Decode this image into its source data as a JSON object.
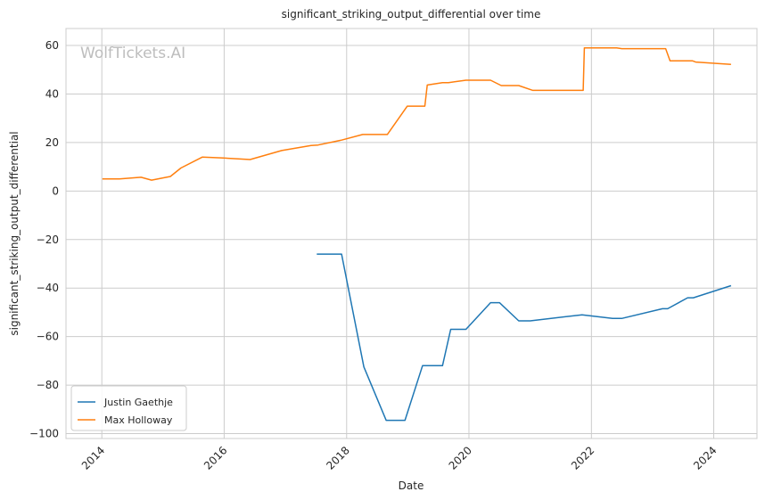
{
  "chart_data": {
    "type": "line",
    "title": "significant_striking_output_differential over time",
    "xlabel": "Date",
    "ylabel": "significant_striking_output_differential",
    "watermark": "WolfTickets.AI",
    "xlim": [
      "2013-06-01",
      "2024-09-15"
    ],
    "ylim": [
      -102,
      67
    ],
    "x_ticks": [
      "2014",
      "2016",
      "2018",
      "2020",
      "2022",
      "2024"
    ],
    "y_ticks": [
      60,
      40,
      20,
      0,
      -20,
      -40,
      -60,
      -80,
      -100
    ],
    "grid": true,
    "legend_position": "lower-left",
    "series": [
      {
        "name": "Justin Gaethje",
        "color": "#1f77b4",
        "points": [
          [
            "2017-07-07",
            -26
          ],
          [
            "2017-12-02",
            -26
          ],
          [
            "2018-04-14",
            -72.5
          ],
          [
            "2018-08-25",
            -94.5
          ],
          [
            "2018-12-15",
            -94.5
          ],
          [
            "2019-03-30",
            -72
          ],
          [
            "2019-07-27",
            -72
          ],
          [
            "2019-09-14",
            -57
          ],
          [
            "2019-12-14",
            -57
          ],
          [
            "2020-05-09",
            -46
          ],
          [
            "2020-07-01",
            -46
          ],
          [
            "2020-10-24",
            -53.5
          ],
          [
            "2021-01-01",
            -53.5
          ],
          [
            "2021-11-06",
            -51
          ],
          [
            "2022-05-07",
            -52.5
          ],
          [
            "2022-07-01",
            -52.5
          ],
          [
            "2023-03-01",
            -48.5
          ],
          [
            "2023-04-01",
            -48.5
          ],
          [
            "2023-07-29",
            -44
          ],
          [
            "2023-09-01",
            -44
          ],
          [
            "2024-04-13",
            -39
          ]
        ]
      },
      {
        "name": "Max Holloway",
        "color": "#ff7f0e",
        "points": [
          [
            "2014-01-04",
            5
          ],
          [
            "2014-04-16",
            5
          ],
          [
            "2014-08-23",
            5.7
          ],
          [
            "2014-10-25",
            4.5
          ],
          [
            "2015-02-14",
            6
          ],
          [
            "2015-04-18",
            9.5
          ],
          [
            "2015-08-23",
            14
          ],
          [
            "2015-12-12",
            13.7
          ],
          [
            "2016-06-04",
            13
          ],
          [
            "2016-12-10",
            16.7
          ],
          [
            "2017-06-03",
            18.8
          ],
          [
            "2017-07-15",
            19
          ],
          [
            "2017-12-02",
            21
          ],
          [
            "2018-04-07",
            23.3
          ],
          [
            "2018-09-01",
            23.3
          ],
          [
            "2018-12-29",
            35
          ],
          [
            "2019-04-13",
            35
          ],
          [
            "2019-04-27",
            43.7
          ],
          [
            "2019-07-27",
            44.7
          ],
          [
            "2019-09-01",
            44.7
          ],
          [
            "2019-12-14",
            45.7
          ],
          [
            "2020-05-09",
            45.7
          ],
          [
            "2020-07-12",
            43.5
          ],
          [
            "2020-10-24",
            43.5
          ],
          [
            "2021-01-16",
            41.5
          ],
          [
            "2021-11-13",
            41.5
          ],
          [
            "2021-11-20",
            59
          ],
          [
            "2022-06-01",
            59
          ],
          [
            "2022-07-02",
            58.7
          ],
          [
            "2023-03-20",
            58.7
          ],
          [
            "2023-04-15",
            53.7
          ],
          [
            "2023-08-26",
            53.7
          ],
          [
            "2023-09-15",
            53.2
          ],
          [
            "2024-04-13",
            52.2
          ]
        ]
      }
    ]
  }
}
